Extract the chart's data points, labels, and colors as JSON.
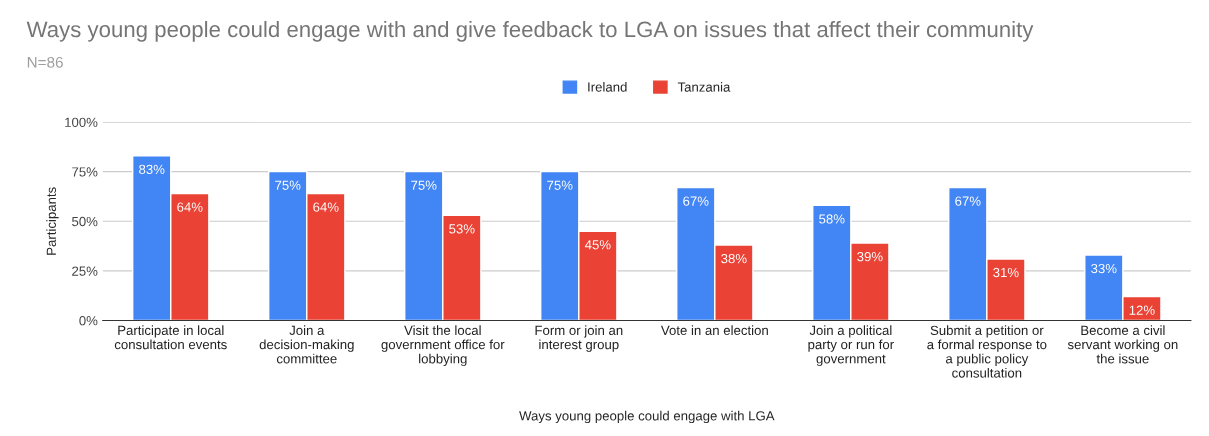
{
  "chart_data": {
    "type": "bar",
    "title": "Ways young people could engage with and give feedback to LGA on issues that affect their community",
    "subtitle": "N=86",
    "xlabel": "Ways young people could engage with LGA",
    "ylabel": "Participants",
    "categories": [
      "Participate in local consultation events",
      "Join a decision-making committee",
      "Visit the local government office for lobbying",
      "Form or join an interest group",
      "Vote in an election",
      "Join a political party or run for government",
      "Submit a petition or a formal response to a public policy consultation",
      "Become a civil servant working on the issue"
    ],
    "series": [
      {
        "name": "Ireland",
        "color": "#4285f4",
        "values": [
          83,
          75,
          75,
          75,
          67,
          58,
          67,
          33
        ],
        "value_labels": [
          "83%",
          "75%",
          "75%",
          "75%",
          "67%",
          "58%",
          "67%",
          "33%"
        ]
      },
      {
        "name": "Tanzania",
        "color": "#ea4335",
        "values": [
          64,
          64,
          53,
          45,
          38,
          39,
          31,
          12
        ],
        "value_labels": [
          "64%",
          "64%",
          "53%",
          "45%",
          "38%",
          "39%",
          "31%",
          "12%"
        ]
      }
    ],
    "ylim": [
      0,
      100
    ],
    "yticks": [
      {
        "value": 0,
        "label": "0%"
      },
      {
        "value": 25,
        "label": "25%"
      },
      {
        "value": 50,
        "label": "50%"
      },
      {
        "value": 75,
        "label": "75%"
      },
      {
        "value": 100,
        "label": "100%"
      }
    ],
    "grid": "y",
    "legend": "top"
  }
}
